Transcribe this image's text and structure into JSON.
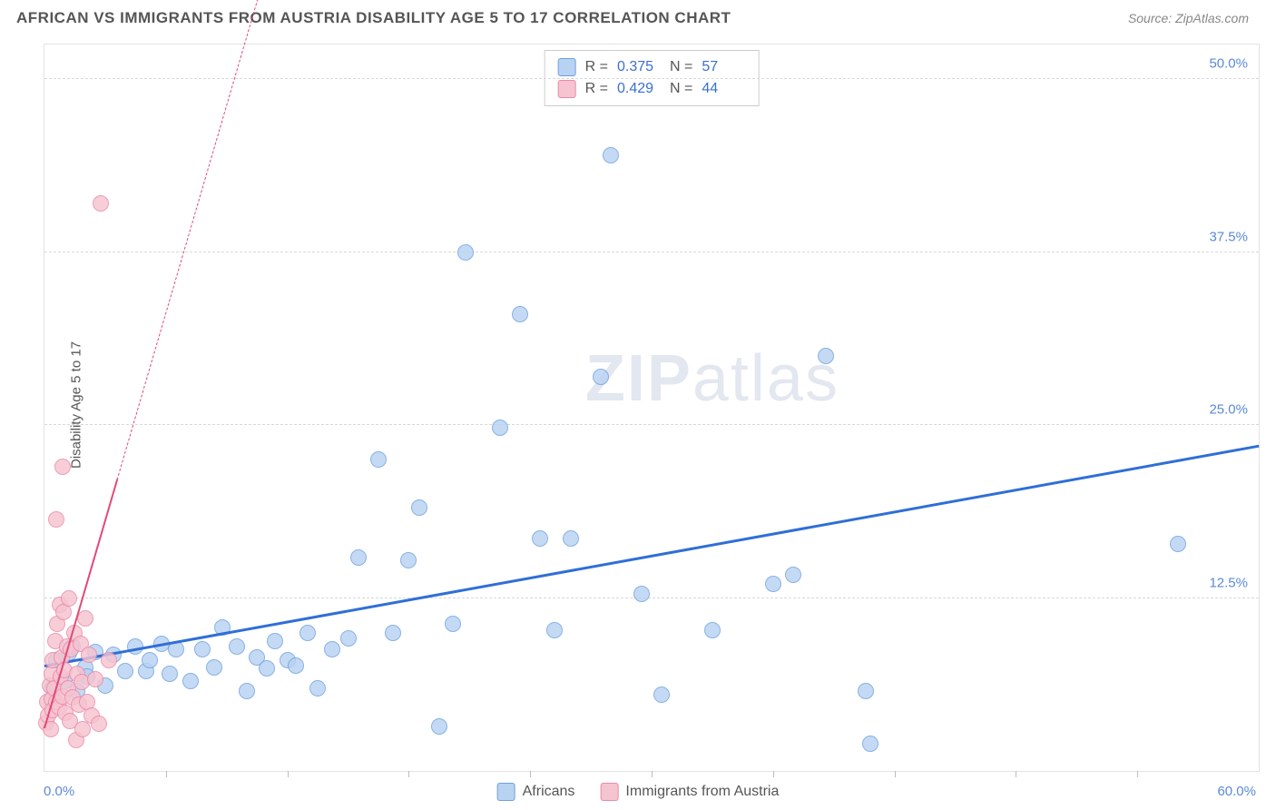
{
  "title": "AFRICAN VS IMMIGRANTS FROM AUSTRIA DISABILITY AGE 5 TO 17 CORRELATION CHART",
  "source": "Source: ZipAtlas.com",
  "watermark_a": "ZIP",
  "watermark_b": "atlas",
  "chart": {
    "type": "scatter",
    "ylabel": "Disability Age 5 to 17",
    "xlim": [
      0,
      60
    ],
    "ylim": [
      0,
      52.5
    ],
    "ytick_values": [
      12.5,
      25.0,
      37.5,
      50.0
    ],
    "ytick_labels": [
      "12.5%",
      "25.0%",
      "37.5%",
      "50.0%"
    ],
    "xtick_positions": [
      6,
      12,
      18,
      24,
      30,
      36,
      42,
      48,
      54
    ],
    "xaxis_min_label": "0.0%",
    "xaxis_max_label": "60.0%",
    "marker_radius": 9,
    "series": [
      {
        "name": "Africans",
        "fill": "#b8d2f2",
        "stroke": "#6fa0e0",
        "trend": {
          "color": "#2f6fd6",
          "width": 3,
          "x1": 0,
          "y1": 7.5,
          "x2": 60,
          "y2": 23.4,
          "dash_after": 60
        },
        "stats": {
          "R": "0.375",
          "N": "57"
        },
        "points": [
          [
            0.4,
            6.0
          ],
          [
            0.6,
            8.0
          ],
          [
            1.0,
            6.5
          ],
          [
            1.2,
            8.5
          ],
          [
            1.4,
            9.0
          ],
          [
            1.6,
            5.8
          ],
          [
            2.0,
            7.5
          ],
          [
            2.1,
            6.8
          ],
          [
            2.5,
            8.6
          ],
          [
            3.0,
            6.2
          ],
          [
            3.4,
            8.4
          ],
          [
            4.0,
            7.2
          ],
          [
            4.5,
            9.0
          ],
          [
            5.0,
            7.2
          ],
          [
            5.2,
            8.0
          ],
          [
            5.8,
            9.2
          ],
          [
            6.2,
            7.0
          ],
          [
            6.5,
            8.8
          ],
          [
            7.2,
            6.5
          ],
          [
            7.8,
            8.8
          ],
          [
            8.4,
            7.5
          ],
          [
            8.8,
            10.4
          ],
          [
            9.5,
            9.0
          ],
          [
            10.0,
            5.8
          ],
          [
            10.5,
            8.2
          ],
          [
            11.0,
            7.4
          ],
          [
            11.4,
            9.4
          ],
          [
            12.0,
            8.0
          ],
          [
            12.4,
            7.6
          ],
          [
            13.0,
            10.0
          ],
          [
            13.5,
            6.0
          ],
          [
            14.2,
            8.8
          ],
          [
            15.0,
            9.6
          ],
          [
            15.5,
            15.4
          ],
          [
            16.5,
            22.5
          ],
          [
            17.2,
            10.0
          ],
          [
            18.0,
            15.2
          ],
          [
            18.5,
            19.0
          ],
          [
            19.5,
            3.2
          ],
          [
            20.2,
            10.6
          ],
          [
            20.8,
            37.5
          ],
          [
            22.5,
            24.8
          ],
          [
            23.5,
            33.0
          ],
          [
            24.5,
            16.8
          ],
          [
            25.2,
            10.2
          ],
          [
            26.0,
            16.8
          ],
          [
            27.5,
            28.5
          ],
          [
            28.0,
            44.5
          ],
          [
            29.5,
            12.8
          ],
          [
            30.5,
            5.5
          ],
          [
            33.0,
            10.2
          ],
          [
            36.0,
            13.5
          ],
          [
            37.0,
            14.2
          ],
          [
            38.6,
            30.0
          ],
          [
            40.6,
            5.8
          ],
          [
            40.8,
            2.0
          ],
          [
            56.0,
            16.4
          ]
        ]
      },
      {
        "name": "Immigrants from Austria",
        "fill": "#f6c3d0",
        "stroke": "#e98aa6",
        "trend": {
          "color": "#e24a78",
          "width": 2.5,
          "x1": 0,
          "y1": 3.0,
          "x2": 3.6,
          "y2": 21.0,
          "dash_after": 3.6,
          "dash_x2": 11.0,
          "dash_y2": 58
        },
        "stats": {
          "R": "0.429",
          "N": "44"
        },
        "points": [
          [
            0.1,
            3.5
          ],
          [
            0.15,
            5.0
          ],
          [
            0.2,
            4.0
          ],
          [
            0.25,
            6.2
          ],
          [
            0.3,
            3.0
          ],
          [
            0.35,
            7.0
          ],
          [
            0.38,
            5.2
          ],
          [
            0.4,
            4.4
          ],
          [
            0.42,
            8.0
          ],
          [
            0.5,
            6.0
          ],
          [
            0.55,
            9.4
          ],
          [
            0.6,
            5.0
          ],
          [
            0.65,
            10.6
          ],
          [
            0.7,
            4.6
          ],
          [
            0.75,
            12.0
          ],
          [
            0.8,
            6.8
          ],
          [
            0.85,
            8.2
          ],
          [
            0.9,
            5.4
          ],
          [
            0.95,
            11.5
          ],
          [
            1.0,
            7.3
          ],
          [
            1.05,
            4.2
          ],
          [
            1.1,
            9.0
          ],
          [
            1.15,
            6.0
          ],
          [
            1.2,
            12.5
          ],
          [
            1.25,
            3.6
          ],
          [
            1.3,
            8.8
          ],
          [
            1.4,
            5.3
          ],
          [
            1.5,
            10.0
          ],
          [
            1.55,
            2.2
          ],
          [
            1.6,
            7.0
          ],
          [
            1.7,
            4.8
          ],
          [
            1.8,
            9.2
          ],
          [
            1.85,
            6.4
          ],
          [
            1.9,
            3.0
          ],
          [
            2.0,
            11.0
          ],
          [
            2.1,
            5.0
          ],
          [
            2.2,
            8.4
          ],
          [
            2.35,
            4.0
          ],
          [
            2.5,
            6.6
          ],
          [
            2.7,
            3.4
          ],
          [
            0.6,
            18.2
          ],
          [
            0.9,
            22.0
          ],
          [
            2.8,
            41.0
          ],
          [
            3.2,
            8.0
          ]
        ]
      }
    ],
    "legend_top": {
      "labels": {
        "R": "R =",
        "N": "N ="
      }
    },
    "legend_bottom": [
      {
        "label": "Africans",
        "fill": "#b8d2f2",
        "stroke": "#6fa0e0"
      },
      {
        "label": "Immigrants from Austria",
        "fill": "#f6c3d0",
        "stroke": "#e98aa6"
      }
    ]
  }
}
